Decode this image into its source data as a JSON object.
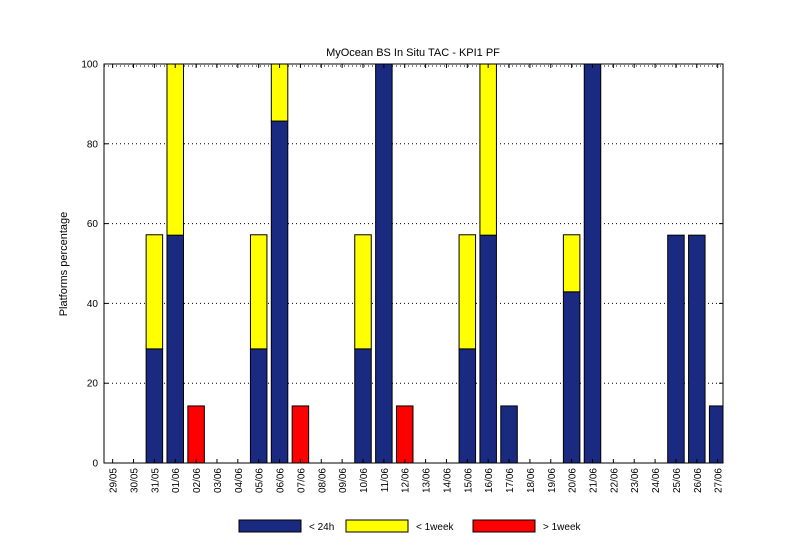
{
  "chart_data": {
    "type": "bar",
    "stacked": true,
    "title": "MyOcean  BS In Situ TAC - KPI1  PF",
    "xlabel": "",
    "ylabel": "Platforms percentage",
    "ylim": [
      0,
      100
    ],
    "yticks": [
      0,
      20,
      40,
      60,
      80,
      100
    ],
    "grid": "horizontal dotted",
    "legend_position": "bottom",
    "categories": [
      "29/05",
      "30/05",
      "31/05",
      "01/06",
      "02/06",
      "03/06",
      "04/06",
      "05/06",
      "06/06",
      "07/06",
      "08/06",
      "09/06",
      "10/06",
      "11/06",
      "12/06",
      "13/06",
      "14/06",
      "15/06",
      "16/06",
      "17/06",
      "18/06",
      "19/06",
      "20/06",
      "21/06",
      "22/06",
      "23/06",
      "24/06",
      "25/06",
      "26/06",
      "27/06"
    ],
    "series": [
      {
        "name": "< 24h",
        "color": "#1a2a80",
        "values": [
          0,
          0,
          28.6,
          57.1,
          0,
          0,
          0,
          28.6,
          85.7,
          0,
          0,
          0,
          28.6,
          100,
          0,
          0,
          0,
          28.6,
          57.1,
          14.3,
          0,
          0,
          42.9,
          100,
          0,
          0,
          0,
          57.1,
          57.1,
          14.3
        ]
      },
      {
        "name": "< 1week",
        "color": "#ffff00",
        "values": [
          0,
          0,
          28.6,
          42.9,
          0,
          0,
          0,
          28.6,
          14.3,
          0,
          0,
          0,
          28.6,
          0,
          0,
          0,
          0,
          28.6,
          42.9,
          0,
          0,
          0,
          14.3,
          0,
          0,
          0,
          0,
          0,
          0,
          0
        ]
      },
      {
        "name": "> 1week",
        "color": "#ff0000",
        "values": [
          0,
          0,
          0,
          0,
          14.3,
          0,
          0,
          0,
          0,
          14.3,
          0,
          0,
          0,
          0,
          14.3,
          0,
          0,
          0,
          0,
          0,
          0,
          0,
          0,
          0,
          0,
          0,
          0,
          0,
          0,
          0
        ]
      }
    ]
  }
}
